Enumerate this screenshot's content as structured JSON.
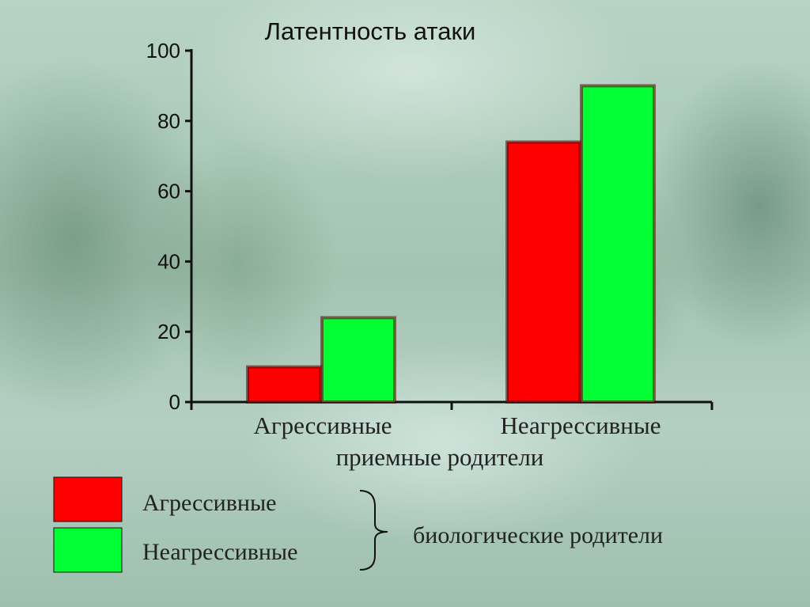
{
  "chart_data": {
    "type": "bar",
    "title": "Латентность атаки",
    "categories": [
      "Агрессивные",
      "Неагрессивные"
    ],
    "xlabel": "приемные родители",
    "ylabel": "",
    "ylim": [
      0,
      100
    ],
    "yticks": [
      "0",
      "20",
      "40",
      "60",
      "80",
      "100"
    ],
    "series": [
      {
        "name": "Агрессивные",
        "color": "#ff0000",
        "values": [
          10,
          74
        ]
      },
      {
        "name": "Неагрессивные",
        "color": "#00ff33",
        "values": [
          24,
          90
        ]
      }
    ],
    "legend": {
      "placement": "bottom-left",
      "bracket_label": "биологические родители"
    },
    "grid": false
  }
}
